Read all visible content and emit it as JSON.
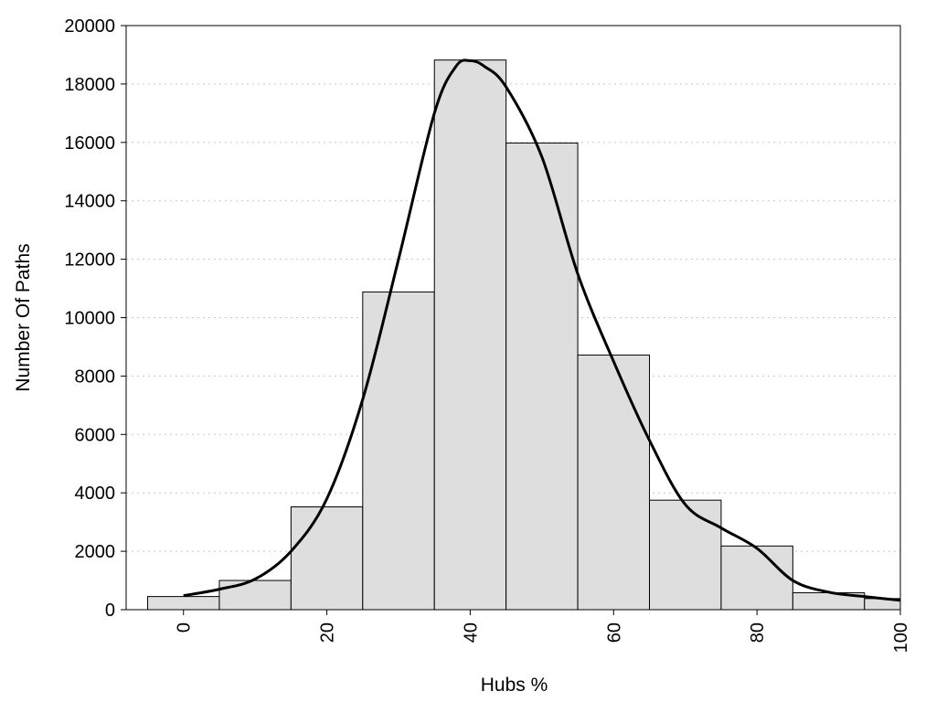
{
  "chart_data": {
    "type": "bar",
    "xlabel": "Hubs %",
    "ylabel": "Number Of Paths",
    "xlim": [
      -8,
      100
    ],
    "ylim": [
      0,
      20000
    ],
    "x_ticks": [
      0,
      20,
      40,
      60,
      80,
      100
    ],
    "y_ticks": [
      0,
      2000,
      4000,
      6000,
      8000,
      10000,
      12000,
      14000,
      16000,
      18000,
      20000
    ],
    "grid": "horizontal dotted",
    "bin_width": 10,
    "bins": [
      {
        "center": 0,
        "value": 450
      },
      {
        "center": 10,
        "value": 1000
      },
      {
        "center": 20,
        "value": 3520
      },
      {
        "center": 30,
        "value": 10880
      },
      {
        "center": 40,
        "value": 18820
      },
      {
        "center": 50,
        "value": 15980
      },
      {
        "center": 60,
        "value": 8720
      },
      {
        "center": 70,
        "value": 3750
      },
      {
        "center": 80,
        "value": 2180
      },
      {
        "center": 90,
        "value": 580
      },
      {
        "center": 100,
        "value": 380
      }
    ],
    "density_curve": {
      "x": [
        0,
        5,
        10,
        15,
        20,
        25,
        30,
        35,
        38,
        40,
        42,
        45,
        50,
        55,
        60,
        65,
        70,
        75,
        80,
        85,
        90,
        95,
        100
      ],
      "y": [
        480,
        700,
        1050,
        2000,
        3800,
        7200,
        12000,
        17000,
        18600,
        18800,
        18600,
        17900,
        15500,
        11500,
        8500,
        5800,
        3600,
        2800,
        2100,
        1000,
        600,
        450,
        320
      ]
    },
    "bar_color": "#dedede",
    "line_color": "#000000"
  }
}
